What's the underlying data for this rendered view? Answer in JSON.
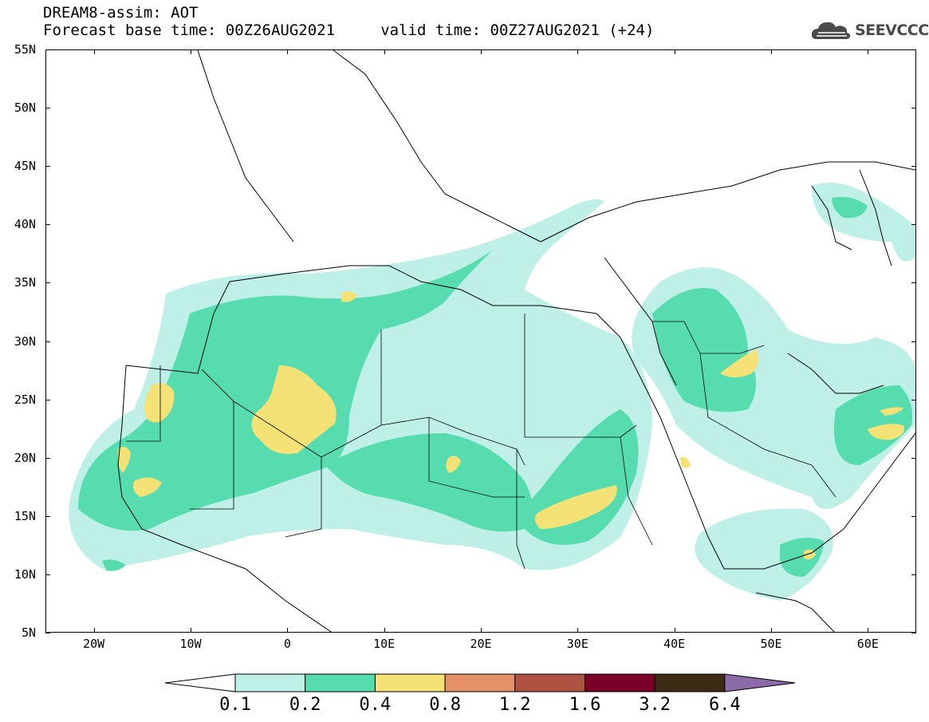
{
  "header": {
    "line1": "DREAM8-assim: AOT",
    "line2": "Forecast base time: 00Z26AUG2021     valid time: 00Z27AUG2021 (+24)"
  },
  "logo": {
    "text": "SEEVCCC",
    "icon": "cloud-icon"
  },
  "map": {
    "lat_range": [
      5,
      55
    ],
    "lon_range": [
      -25,
      65
    ],
    "lat_labels": [
      "55N",
      "50N",
      "45N",
      "40N",
      "35N",
      "30N",
      "25N",
      "20N",
      "15N",
      "10N",
      "5N"
    ],
    "lon_labels": [
      "20W",
      "10W",
      "0",
      "10E",
      "20E",
      "30E",
      "40E",
      "50E",
      "60E"
    ]
  },
  "colorbar": {
    "levels": [
      "0.1",
      "0.2",
      "0.4",
      "0.8",
      "1.2",
      "1.6",
      "3.2",
      "6.4"
    ],
    "colors": {
      "below": "#ffffff",
      "c1": "#bff0e8",
      "c2": "#57dcb0",
      "c3": "#f5e276",
      "c4": "#e6906a",
      "c5": "#ad5240",
      "c6": "#7a0028",
      "c7": "#3d2a14",
      "above": "#8a6aa8"
    }
  }
}
